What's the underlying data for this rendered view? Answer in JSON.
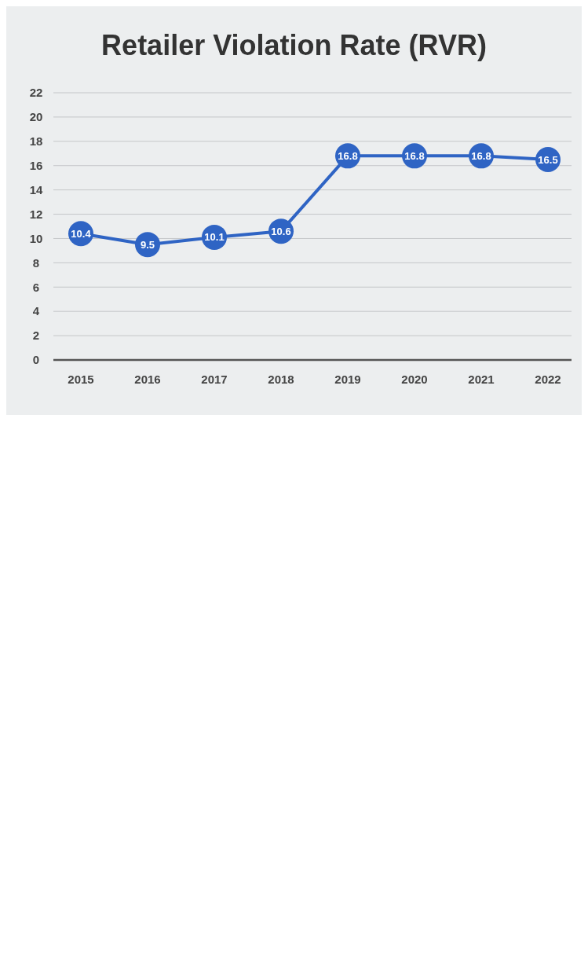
{
  "chart_data": {
    "type": "line",
    "title": "Retailer Violation Rate (RVR)",
    "categories": [
      "2015",
      "2016",
      "2017",
      "2018",
      "2019",
      "2020",
      "2021",
      "2022"
    ],
    "series": [
      {
        "color": "#2f64c4",
        "values": [
          10.4,
          9.5,
          10.1,
          10.6,
          16.8,
          16.8,
          16.8,
          16.5
        ]
      }
    ],
    "ylim": [
      0,
      22
    ],
    "yticks": [
      0,
      2,
      4,
      6,
      8,
      10,
      12,
      14,
      16,
      18,
      20,
      22
    ],
    "grid": "y",
    "marker": "circle",
    "data_labels": true
  }
}
